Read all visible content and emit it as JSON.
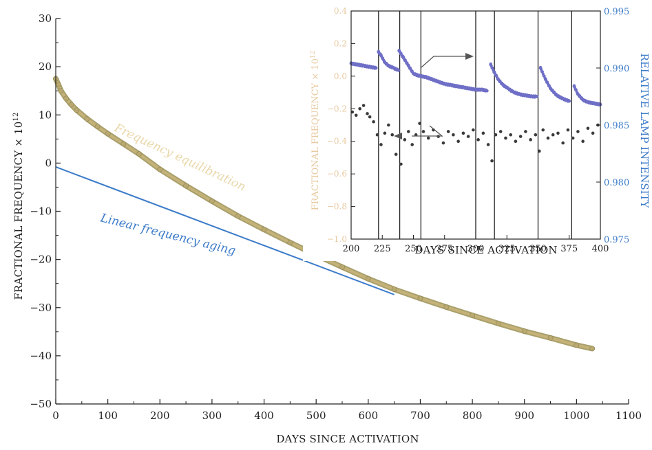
{
  "chart_data": [
    {
      "type": "line",
      "xlabel": "DAYS SINCE ACTIVATION",
      "ylabel": "FRACTIONAL FREQUENCY × 10",
      "ylabel_sup": "12",
      "xlim": [
        0,
        1100
      ],
      "ylim": [
        -50,
        30
      ],
      "x_ticks": [
        0,
        100,
        200,
        300,
        400,
        500,
        600,
        700,
        800,
        900,
        1000,
        1100
      ],
      "y_ticks": [
        30,
        20,
        10,
        0,
        -10,
        -20,
        -30,
        -40,
        -50
      ],
      "y_tick_labels": [
        "30",
        "20",
        "10",
        "0",
        "−10",
        "−20",
        "−30",
        "−40",
        "−50"
      ],
      "grid": false,
      "annotations": [
        {
          "text": "Frequency equilibration",
          "color": "#e8d7a8"
        },
        {
          "text": "Linear frequency aging",
          "color": "#3d7cc9"
        }
      ],
      "series": [
        {
          "style": "markers",
          "color": "#c9b57a",
          "x": [
            0,
            5,
            10,
            20,
            30,
            40,
            60,
            80,
            100,
            130,
            160,
            200,
            250,
            300,
            350,
            400,
            450,
            500,
            550,
            600,
            650,
            700,
            750,
            800,
            850,
            900,
            950,
            1000,
            1030
          ],
          "y": [
            17.5,
            16.3,
            15,
            13.4,
            12.1,
            11,
            9.2,
            7.6,
            6.1,
            4.0,
            1.9,
            -1.3,
            -4.7,
            -7.9,
            -11,
            -13.8,
            -16.5,
            -19.1,
            -21.6,
            -24,
            -26.2,
            -28.1,
            -29.9,
            -31.6,
            -33.3,
            -34.9,
            -36.3,
            -37.8,
            -38.5
          ]
        },
        {
          "style": "line",
          "color": "#3d7cc9",
          "x": [
            0,
            650
          ],
          "y": [
            -0.8,
            -27.3
          ]
        }
      ]
    },
    {
      "type": "scatter",
      "xlabel": "DAYS SINCE ACTIVATION",
      "ylabel_left": "FRACTIONAL FREQUENCY × 10",
      "ylabel_left_sup": "12",
      "ylabel_right": "RELATIVE LAMP INTENSITY",
      "xlim": [
        200,
        400
      ],
      "ylim_left": [
        -1.0,
        0.4
      ],
      "ylim_right": [
        0.975,
        0.995
      ],
      "x_ticks": [
        200,
        225,
        250,
        275,
        300,
        325,
        350,
        375,
        400
      ],
      "y_ticks_left": [
        "0.4",
        "0.2",
        "0.0",
        "−0.2",
        "−0.4",
        "−0.6",
        "−0.8",
        "−1.0"
      ],
      "y_tick_values_left": [
        0.4,
        0.2,
        0.0,
        -0.2,
        -0.4,
        -0.6,
        -0.8,
        -1.0
      ],
      "y_ticks_right": [
        "0.995",
        "0.990",
        "0.985",
        "0.980",
        "0.975"
      ],
      "y_tick_values_right": [
        0.995,
        0.99,
        0.985,
        0.98,
        0.975
      ],
      "event_lines_x": [
        222,
        239,
        256,
        300,
        315,
        350,
        377
      ],
      "left_axis_color": "#e8c9a0",
      "right_axis_color": "#3d7cc9",
      "series": [
        {
          "axis": "right",
          "color": "#6f6fc7",
          "x": [
            200,
            205,
            210,
            215,
            220,
            222,
            224,
            227,
            230,
            234,
            238,
            238.5,
            242,
            246,
            250,
            255,
            260,
            265,
            270,
            275,
            280,
            285,
            290,
            295,
            300,
            305,
            309,
            312,
            315,
            318,
            322,
            326,
            330,
            335,
            340,
            345,
            349,
            352,
            356,
            360,
            365,
            370,
            375,
            379,
            382,
            386,
            390,
            395,
            400
          ],
          "y": [
            0.9904,
            0.9903,
            0.9902,
            0.9901,
            0.99,
            0.9914,
            0.9911,
            0.9905,
            0.9902,
            0.99,
            0.9898,
            0.9915,
            0.9909,
            0.9902,
            0.9895,
            0.9893,
            0.9892,
            0.989,
            0.9888,
            0.9886,
            0.9885,
            0.9884,
            0.9883,
            0.9882,
            0.9881,
            0.9881,
            0.988,
            0.9903,
            0.9896,
            0.989,
            0.9885,
            0.9882,
            0.9879,
            0.9877,
            0.9876,
            0.9875,
            0.9875,
            0.99,
            0.989,
            0.9882,
            0.9876,
            0.9873,
            0.9871,
            0.9884,
            0.9877,
            0.9872,
            0.987,
            0.9869,
            0.9868
          ]
        },
        {
          "axis": "left",
          "color": "#3a3a3a",
          "x": [
            201,
            204,
            207,
            210,
            213,
            215,
            218,
            221,
            224,
            227,
            230,
            233,
            236,
            240,
            243,
            246,
            249,
            252,
            255,
            258,
            262,
            266,
            270,
            274,
            278,
            282,
            286,
            290,
            294,
            298,
            302,
            306,
            310,
            313,
            316,
            320,
            324,
            328,
            332,
            336,
            340,
            344,
            348,
            351,
            354,
            358,
            362,
            366,
            370,
            374,
            378,
            382,
            386,
            390,
            394,
            398
          ],
          "y": [
            -0.22,
            -0.24,
            -0.2,
            -0.18,
            -0.23,
            -0.25,
            -0.28,
            -0.36,
            -0.42,
            -0.35,
            -0.3,
            -0.36,
            -0.48,
            -0.54,
            -0.39,
            -0.34,
            -0.42,
            -0.36,
            -0.29,
            -0.34,
            -0.38,
            -0.33,
            -0.37,
            -0.41,
            -0.34,
            -0.36,
            -0.4,
            -0.35,
            -0.37,
            -0.33,
            -0.39,
            -0.35,
            -0.42,
            -0.52,
            -0.36,
            -0.34,
            -0.38,
            -0.36,
            -0.4,
            -0.37,
            -0.34,
            -0.39,
            -0.36,
            -0.46,
            -0.33,
            -0.38,
            -0.36,
            -0.35,
            -0.41,
            -0.33,
            -0.38,
            -0.34,
            -0.4,
            -0.32,
            -0.35,
            -0.3
          ]
        }
      ]
    }
  ]
}
